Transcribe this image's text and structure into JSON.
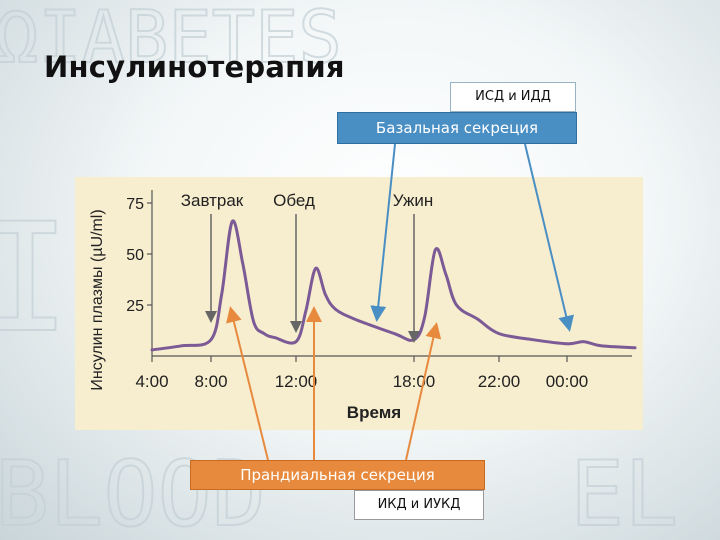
{
  "slide": {
    "title": "Инсулинотерапия",
    "top_box": "ИСД и ИДД",
    "basal_label": "Базальная секреция",
    "prandial_label": "Прандиальная секреция",
    "bottom_box": "ИКД и ИУКД",
    "colors": {
      "basal": "#4a8fc4",
      "prandial": "#e88a3e",
      "curve": "#7b5a96",
      "panel": "#f7edcf"
    }
  },
  "chart_data": {
    "type": "line",
    "xlabel": "Время",
    "ylabel": "Инсулин плазмы (µU/ml)",
    "x_tick_labels": [
      "4:00",
      "8:00",
      "12:00",
      "18:00",
      "22:00",
      "00:00"
    ],
    "y_ticks": [
      25,
      50,
      75
    ],
    "ylim": [
      0,
      80
    ],
    "meal_labels": [
      "Завтрак",
      "Обед",
      "Ужин"
    ],
    "series": [
      {
        "x": [
          "4:00",
          "6:00",
          "8:00",
          "8:30",
          "9:00",
          "9:30",
          "10:00",
          "10:30",
          "11:00",
          "12:00",
          "12:30",
          "13:00",
          "13:30",
          "14:00",
          "15:00",
          "17:00",
          "18:00",
          "18:30",
          "19:00",
          "19:30",
          "20:00",
          "21:00",
          "22:00",
          "23:00",
          "00:00",
          "00:30",
          "01:00",
          "02:00"
        ],
        "values": [
          3,
          5,
          8,
          30,
          66,
          45,
          17,
          11,
          9,
          7,
          22,
          43,
          30,
          23,
          18,
          11,
          8,
          19,
          52,
          40,
          25,
          18,
          11,
          8,
          6,
          7,
          5,
          4
        ]
      }
    ]
  }
}
